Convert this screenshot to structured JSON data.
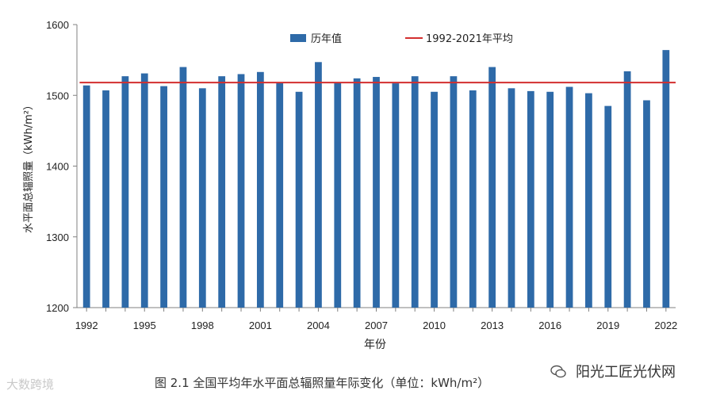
{
  "chart_data": {
    "type": "bar",
    "title": "",
    "caption": "图 2.1    全国平均年水平面总辐照量年际变化（单位：kWh/m²）",
    "xlabel": "年份",
    "ylabel": "水平面总辐照量（kWh/m²）",
    "ylim": [
      1200,
      1600
    ],
    "yticks": [
      1200,
      1300,
      1400,
      1500,
      1600
    ],
    "xticks": [
      "1992",
      "1995",
      "1998",
      "2001",
      "2004",
      "2007",
      "2010",
      "2013",
      "2016",
      "2019",
      "2022"
    ],
    "categories": [
      "1992",
      "1993",
      "1994",
      "1995",
      "1996",
      "1997",
      "1998",
      "1999",
      "2000",
      "2001",
      "2002",
      "2003",
      "2004",
      "2005",
      "2006",
      "2007",
      "2008",
      "2009",
      "2010",
      "2011",
      "2012",
      "2013",
      "2014",
      "2015",
      "2016",
      "2017",
      "2018",
      "2019",
      "2020",
      "2021",
      "2022"
    ],
    "series": [
      {
        "name": "历年值",
        "color": "#2e6aa8",
        "values": [
          1514,
          1507,
          1527,
          1531,
          1513,
          1540,
          1510,
          1527,
          1530,
          1533,
          1518,
          1505,
          1547,
          1518,
          1524,
          1526,
          1517,
          1527,
          1505,
          1527,
          1507,
          1540,
          1510,
          1506,
          1505,
          1512,
          1503,
          1485,
          1534,
          1493,
          1564
        ]
      }
    ],
    "reference_line": {
      "name": "1992-2021年平均",
      "value": 1518,
      "color": "#d32f2f"
    },
    "legend_position": "top",
    "grid": false
  },
  "watermarks": {
    "left": "大数跨境",
    "right": "阳光工匠光伏网"
  }
}
